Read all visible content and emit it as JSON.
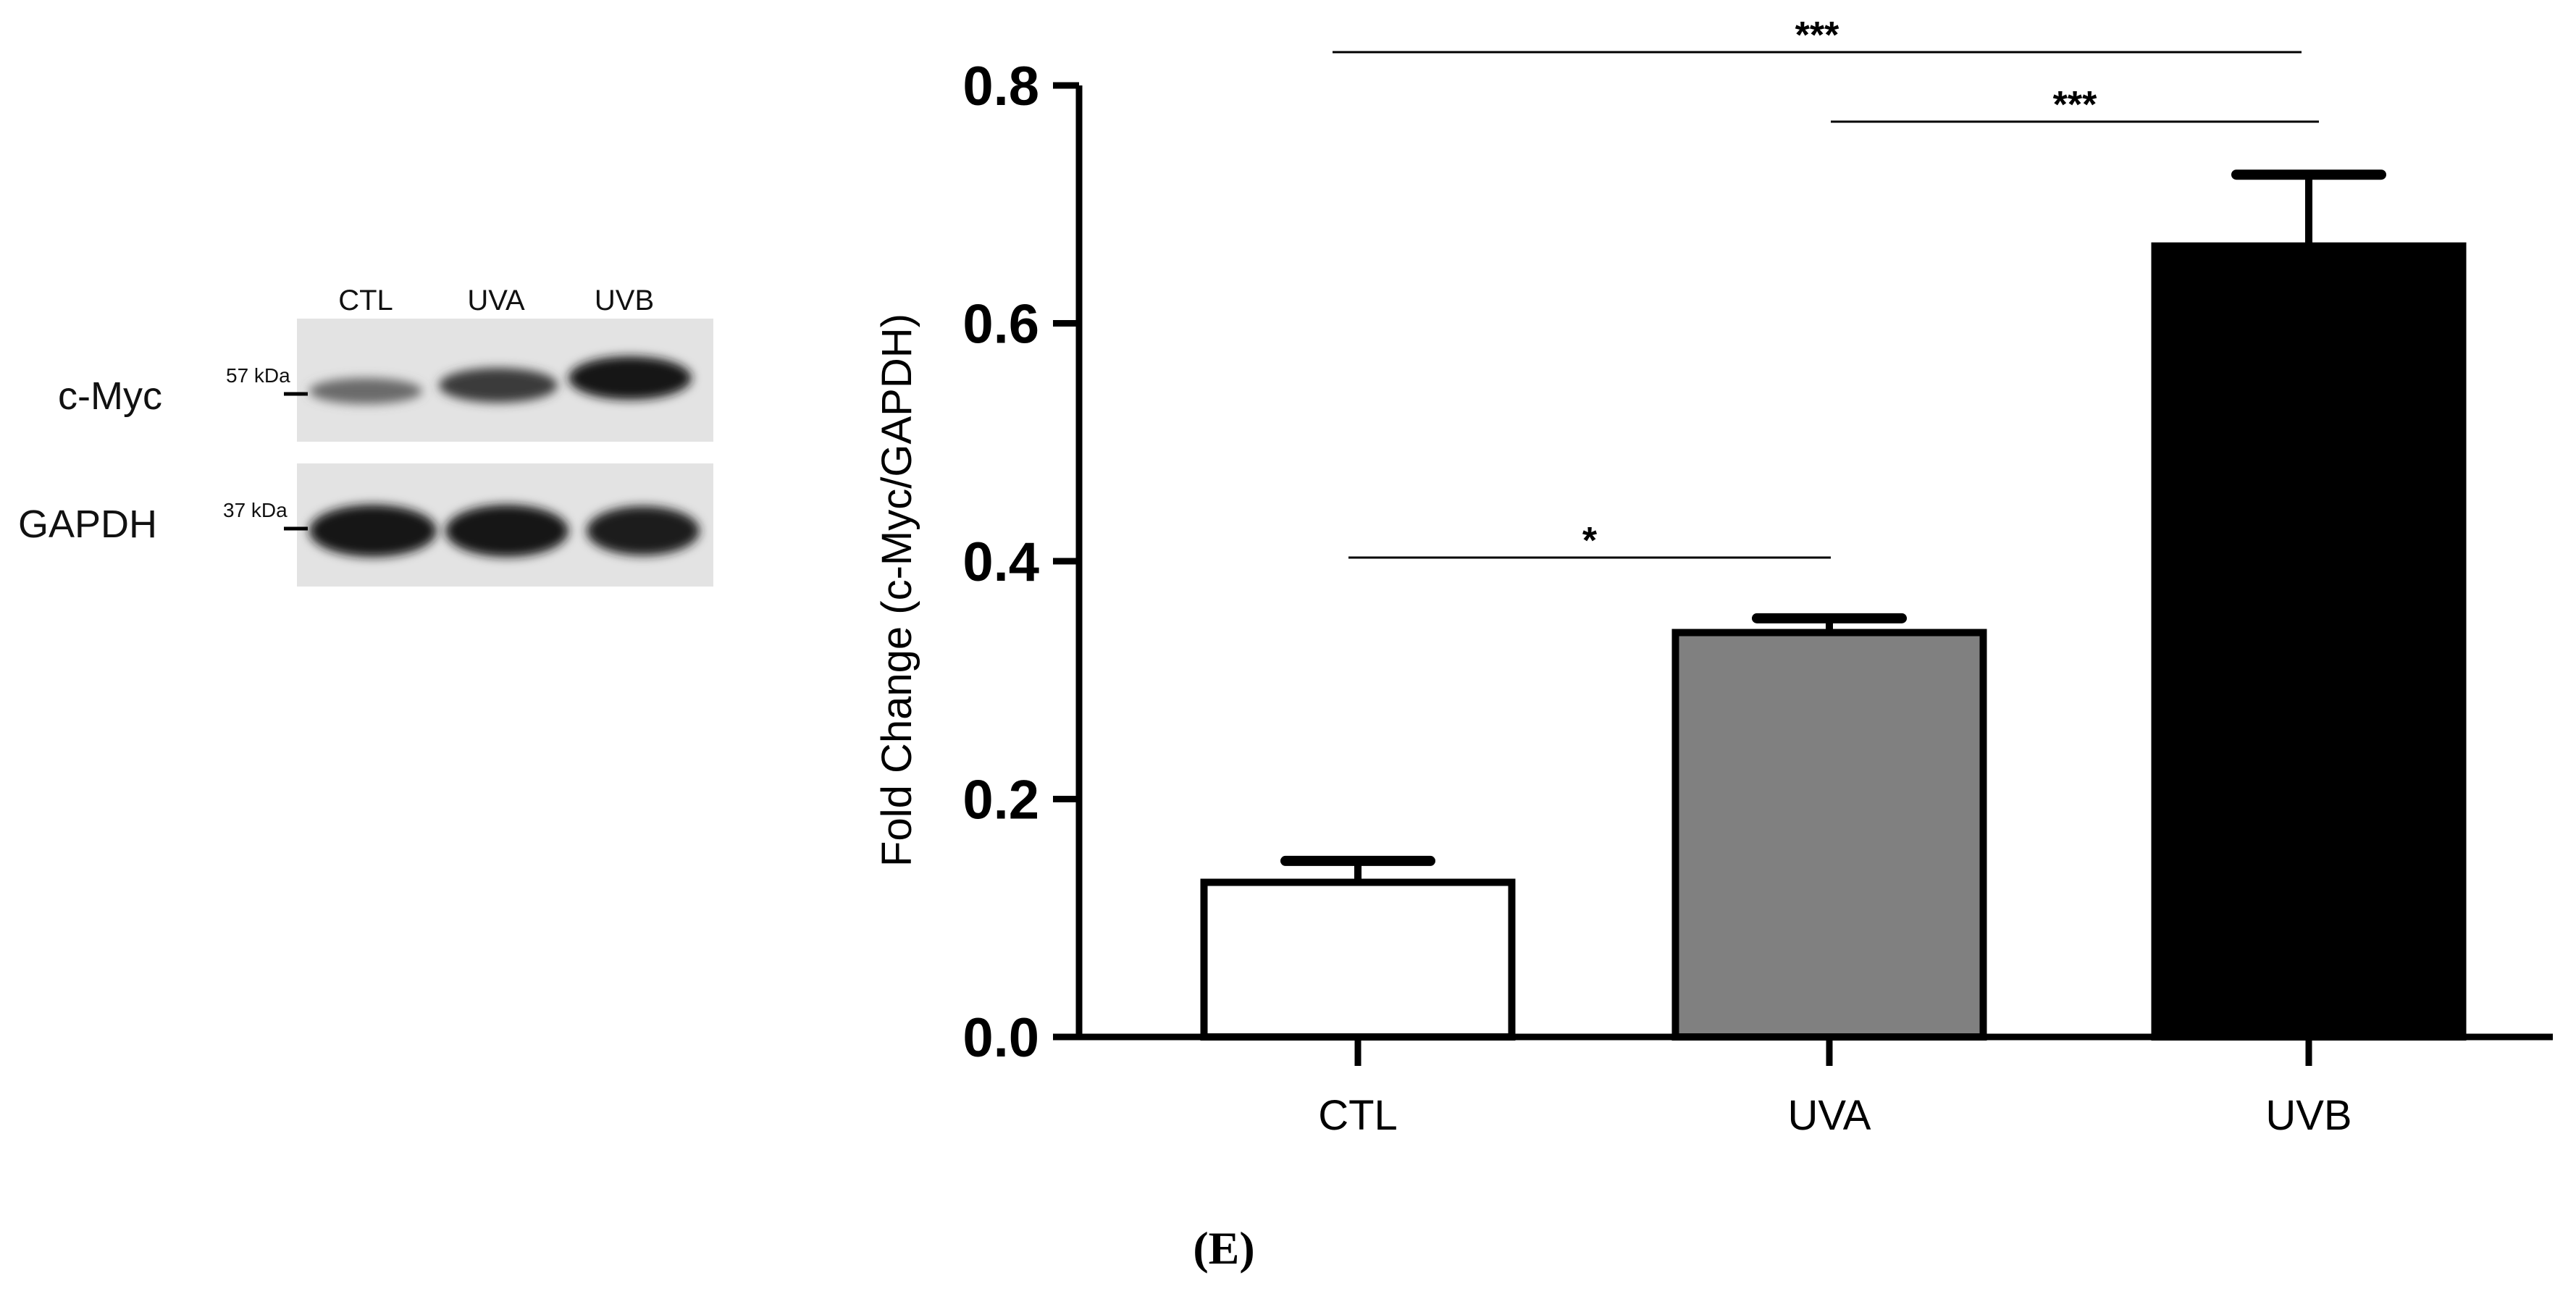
{
  "blot": {
    "lanes": [
      "CTL",
      "UVA",
      "UVB"
    ],
    "rows": [
      {
        "protein": "c-Myc",
        "marker": "57 kDa",
        "intensity": [
          0.35,
          0.6,
          0.85
        ]
      },
      {
        "protein": "GAPDH",
        "marker": "37 kDa",
        "intensity": [
          0.9,
          0.9,
          0.9
        ]
      }
    ]
  },
  "panel_label": "(E)",
  "chart_data": {
    "type": "bar",
    "categories": [
      "CTL",
      "UVA",
      "UVB"
    ],
    "values": [
      0.13,
      0.34,
      0.665
    ],
    "errors": [
      0.018,
      0.012,
      0.06
    ],
    "bar_colors": [
      "#ffffff",
      "#808080",
      "#000000"
    ],
    "ylabel": "Fold Change (c-Myc/GAPDH)",
    "xlabel": "",
    "ylim": [
      0,
      0.8
    ],
    "yticks": [
      "0.0",
      "0.2",
      "0.4",
      "0.6",
      "0.8"
    ],
    "significance": [
      {
        "from": "CTL",
        "to": "UVB",
        "label": "***"
      },
      {
        "from": "UVA",
        "to": "UVB",
        "label": "***"
      },
      {
        "from": "CTL",
        "to": "UVA",
        "label": "*"
      }
    ]
  }
}
